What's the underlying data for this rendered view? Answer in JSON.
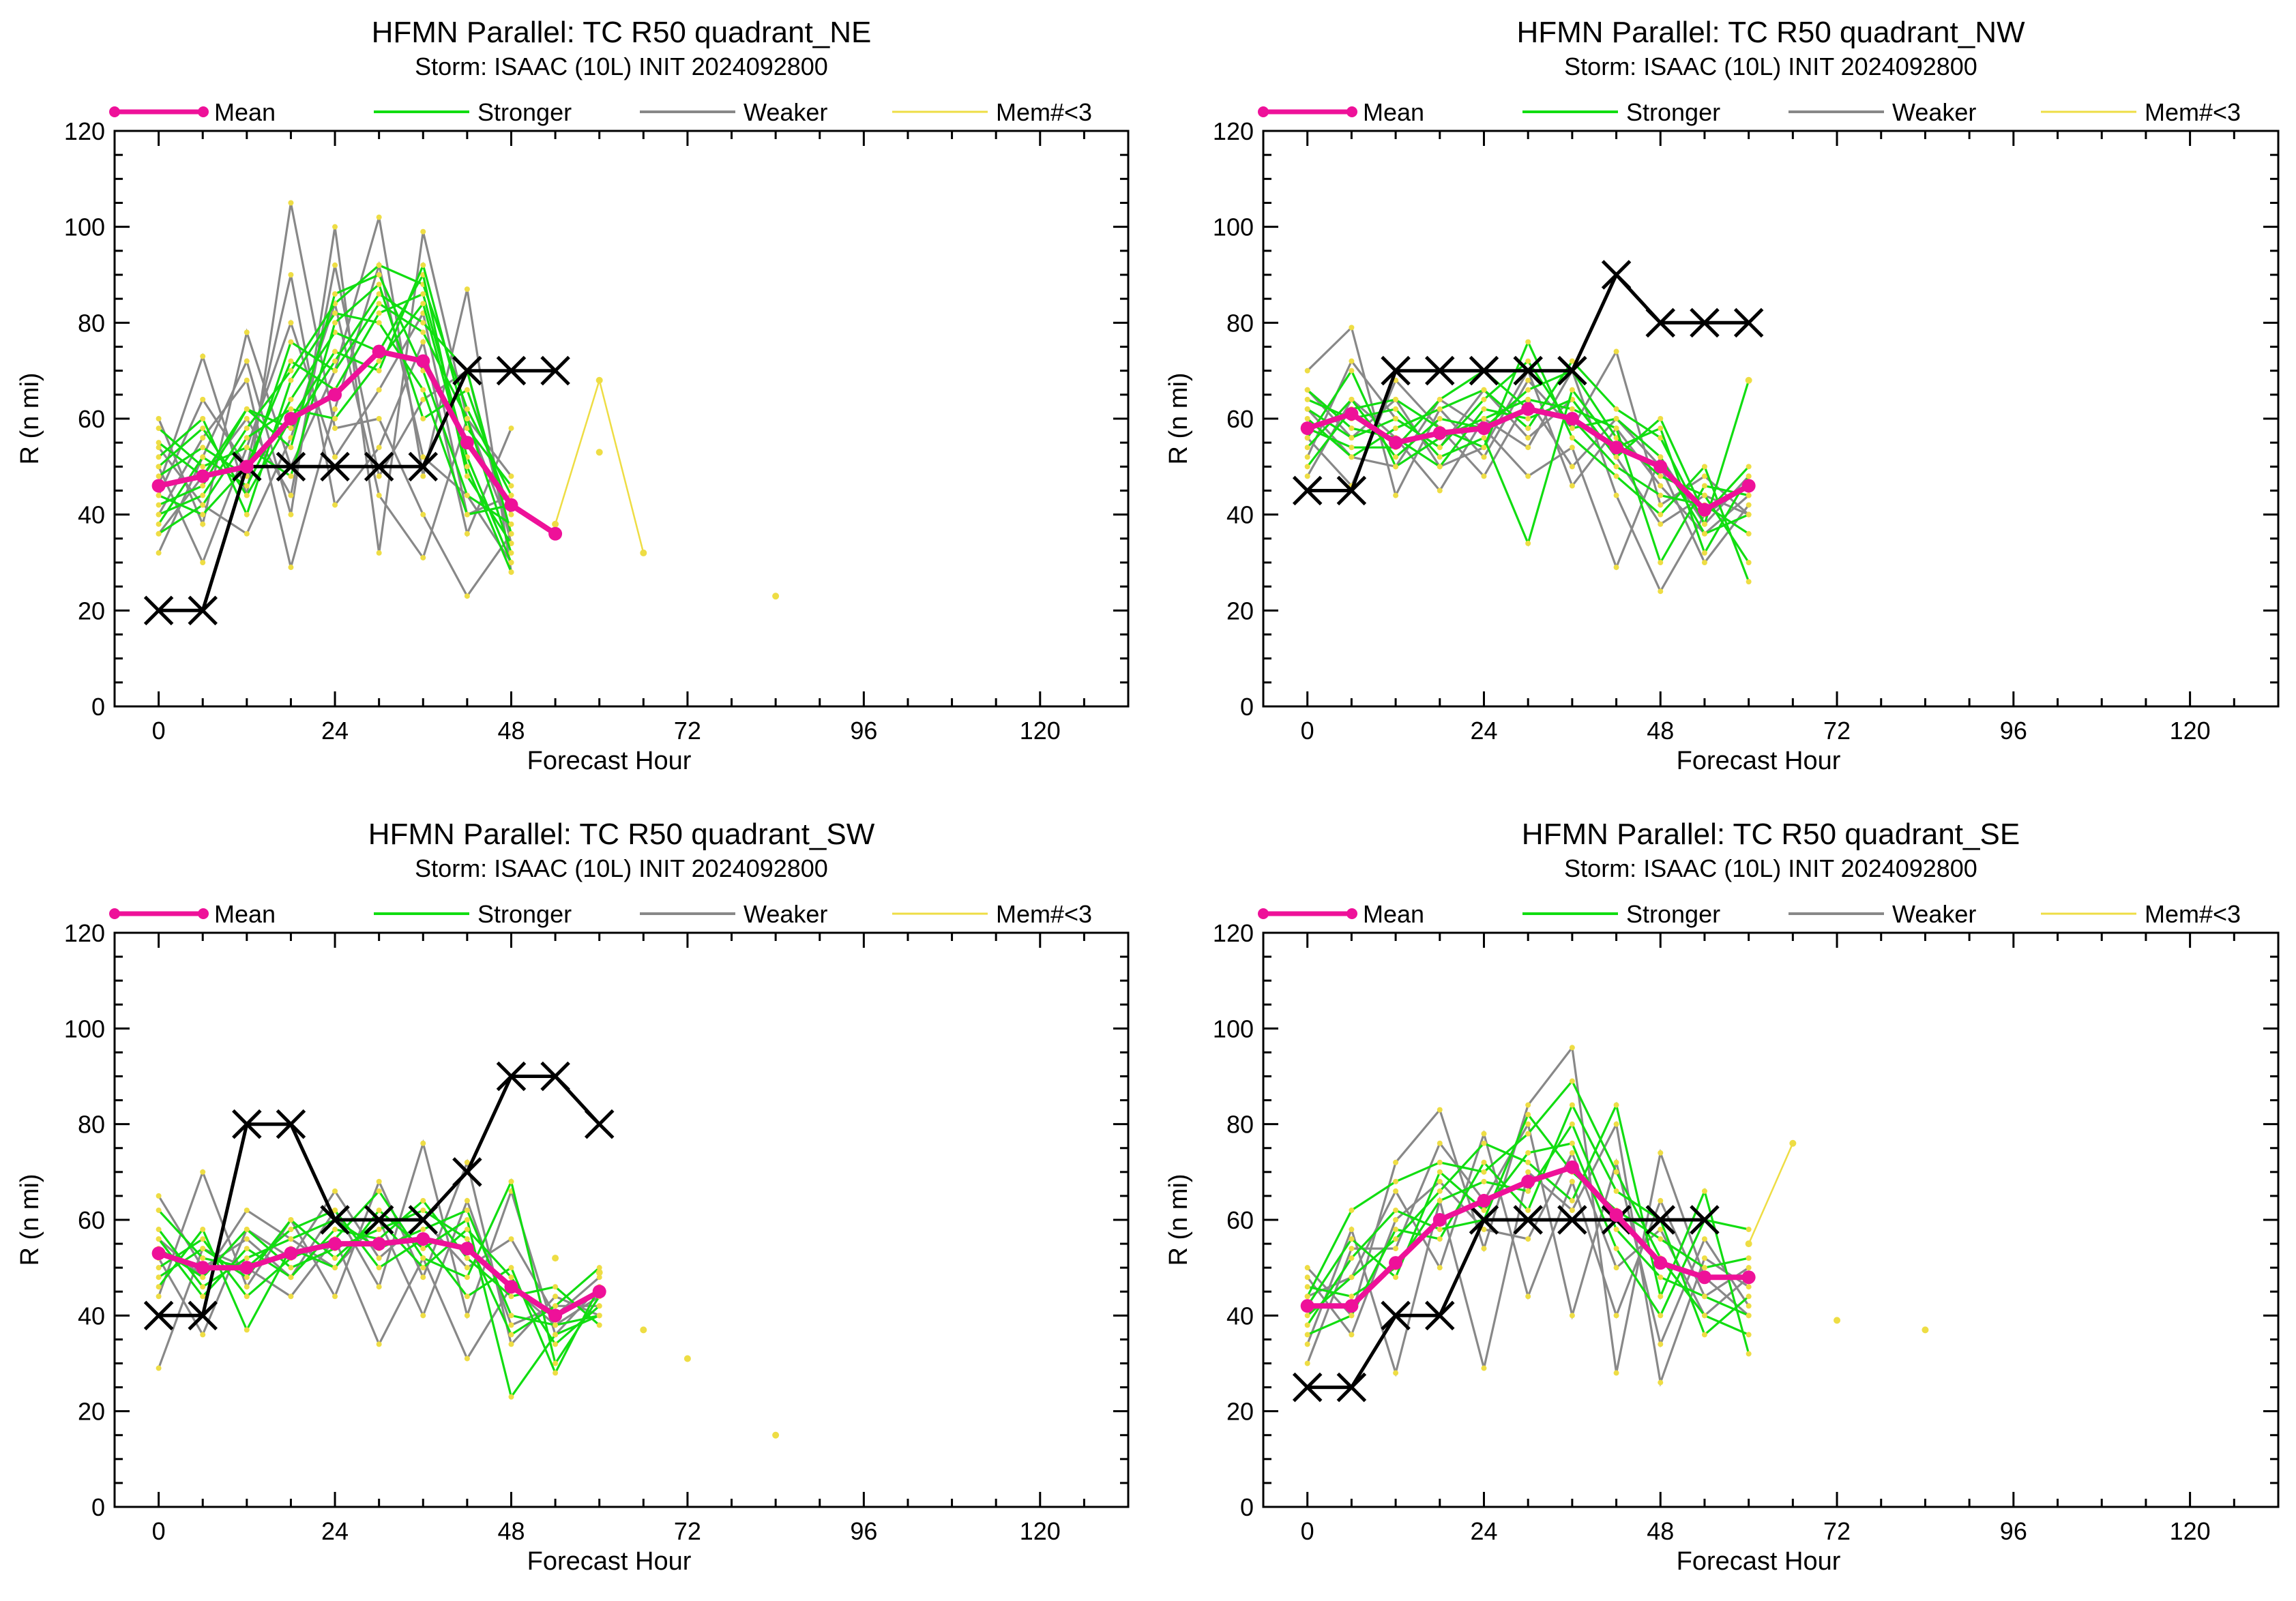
{
  "colors": {
    "mean": "#ee1199",
    "stronger": "#11dd11",
    "weaker": "#888888",
    "mem_lt3": "#eedd44",
    "best_track": "#000000"
  },
  "legend": {
    "mean": "Mean",
    "stronger": "Stronger",
    "weaker": "Weaker",
    "mem_lt3": "Mem#<3"
  },
  "chart_data": [
    {
      "type": "line",
      "title": "HFMN Parallel: TC  R50 quadrant_NE",
      "subtitle": "Storm: ISAAC (10L) INIT 2024092800",
      "xlabel": "Forecast Hour",
      "ylabel": "R (n mi)",
      "xlim": [
        -6,
        132
      ],
      "ylim": [
        0,
        120
      ],
      "xticks": [
        0,
        24,
        48,
        72,
        96,
        120
      ],
      "yticks": [
        0,
        20,
        40,
        60,
        80,
        100,
        120
      ],
      "mean": {
        "x": [
          0,
          6,
          12,
          18,
          24,
          30,
          36,
          42,
          48,
          54
        ],
        "y": [
          46,
          48,
          50,
          60,
          65,
          74,
          72,
          55,
          42,
          36
        ]
      },
      "best_track": {
        "x": [
          0,
          6,
          12,
          18,
          24,
          30,
          36,
          42,
          48,
          54
        ],
        "y": [
          20,
          20,
          50,
          50,
          50,
          50,
          50,
          70,
          70,
          70
        ]
      },
      "mem_lt3": [
        {
          "x": [
            54,
            60,
            66
          ],
          "y": [
            38,
            68,
            32
          ]
        },
        {
          "x": [
            60
          ],
          "y": [
            53
          ]
        },
        {
          "x": [
            84
          ],
          "y": [
            23
          ]
        }
      ],
      "members_x": [
        0,
        6,
        12,
        18,
        24,
        30,
        36,
        42,
        48
      ],
      "stronger": [
        [
          40,
          44,
          58,
          70,
          84,
          92,
          88,
          62,
          44
        ],
        [
          55,
          48,
          62,
          58,
          72,
          86,
          80,
          70,
          36
        ],
        [
          38,
          52,
          46,
          64,
          78,
          74,
          90,
          48,
          34
        ],
        [
          58,
          50,
          54,
          48,
          80,
          88,
          60,
          66,
          40
        ],
        [
          44,
          40,
          50,
          72,
          66,
          82,
          86,
          52,
          30
        ],
        [
          50,
          58,
          44,
          60,
          74,
          70,
          92,
          58,
          46
        ],
        [
          42,
          46,
          62,
          54,
          86,
          90,
          70,
          44,
          38
        ],
        [
          48,
          54,
          48,
          76,
          70,
          84,
          78,
          60,
          32
        ],
        [
          36,
          42,
          56,
          62,
          60,
          72,
          84,
          50,
          28
        ],
        [
          52,
          60,
          40,
          68,
          82,
          80,
          66,
          40,
          42
        ]
      ],
      "weaker": [
        [
          46,
          73,
          44,
          105,
          58,
          60,
          40,
          23,
          36
        ],
        [
          32,
          52,
          72,
          40,
          100,
          32,
          99,
          60,
          48
        ],
        [
          60,
          38,
          78,
          50,
          70,
          102,
          48,
          87,
          28
        ],
        [
          44,
          64,
          50,
          90,
          42,
          54,
          76,
          36,
          58
        ],
        [
          54,
          42,
          36,
          56,
          84,
          44,
          31,
          60,
          36
        ],
        [
          40,
          56,
          68,
          29,
          62,
          92,
          52,
          44,
          30
        ],
        [
          50,
          30,
          54,
          80,
          52,
          66,
          82,
          40,
          44
        ],
        [
          36,
          48,
          60,
          44,
          92,
          48,
          64,
          70,
          34
        ]
      ]
    },
    {
      "type": "line",
      "title": "HFMN Parallel: TC  R50 quadrant_NW",
      "subtitle": "Storm: ISAAC (10L) INIT 2024092800",
      "xlabel": "Forecast Hour",
      "ylabel": "R (n mi)",
      "xlim": [
        -6,
        132
      ],
      "ylim": [
        0,
        120
      ],
      "xticks": [
        0,
        24,
        48,
        72,
        96,
        120
      ],
      "yticks": [
        0,
        20,
        40,
        60,
        80,
        100,
        120
      ],
      "mean": {
        "x": [
          0,
          6,
          12,
          18,
          24,
          30,
          36,
          42,
          48,
          54,
          60
        ],
        "y": [
          58,
          61,
          55,
          57,
          58,
          62,
          60,
          54,
          50,
          41,
          46
        ]
      },
      "best_track": {
        "x": [
          0,
          6,
          12,
          18,
          24,
          30,
          36,
          42,
          48,
          54,
          60
        ],
        "y": [
          45,
          45,
          70,
          70,
          70,
          70,
          70,
          90,
          80,
          80,
          80
        ]
      },
      "mem_lt3": [
        {
          "x": [
            60
          ],
          "y": [
            68
          ]
        }
      ],
      "members_x": [
        0,
        6,
        12,
        18,
        24,
        30,
        36,
        42,
        48,
        54,
        60
      ],
      "stronger": [
        [
          62,
          56,
          60,
          54,
          64,
          72,
          58,
          60,
          52,
          36,
          40
        ],
        [
          54,
          64,
          52,
          60,
          58,
          66,
          70,
          56,
          48,
          44,
          30
        ],
        [
          66,
          58,
          56,
          50,
          62,
          60,
          64,
          52,
          60,
          40,
          50
        ],
        [
          50,
          62,
          64,
          58,
          54,
          76,
          56,
          48,
          40,
          50,
          26
        ],
        [
          60,
          52,
          58,
          62,
          66,
          58,
          72,
          62,
          56,
          38,
          68
        ],
        [
          56,
          70,
          50,
          56,
          60,
          64,
          62,
          58,
          30,
          46,
          44
        ],
        [
          64,
          60,
          62,
          52,
          56,
          34,
          66,
          54,
          58,
          32,
          48
        ],
        [
          58,
          54,
          54,
          64,
          70,
          62,
          60,
          50,
          44,
          42,
          36
        ]
      ],
      "weaker": [
        [
          70,
          79,
          44,
          62,
          52,
          68,
          58,
          74,
          42,
          48,
          40
        ],
        [
          48,
          64,
          56,
          45,
          60,
          54,
          70,
          44,
          24,
          40,
          46
        ],
        [
          56,
          46,
          68,
          58,
          48,
          64,
          50,
          60,
          50,
          30,
          42
        ],
        [
          62,
          52,
          50,
          64,
          58,
          48,
          54,
          29,
          52,
          38,
          48
        ],
        [
          52,
          72,
          60,
          54,
          66,
          56,
          64,
          52,
          38,
          44,
          40
        ],
        [
          66,
          56,
          64,
          50,
          54,
          70,
          46,
          58,
          46,
          36,
          44
        ]
      ]
    },
    {
      "type": "line",
      "title": "HFMN Parallel: TC  R50 quadrant_SW",
      "subtitle": "Storm: ISAAC (10L) INIT 2024092800",
      "xlabel": "Forecast Hour",
      "ylabel": "R (n mi)",
      "xlim": [
        -6,
        132
      ],
      "ylim": [
        0,
        120
      ],
      "xticks": [
        0,
        24,
        48,
        72,
        96,
        120
      ],
      "yticks": [
        0,
        20,
        40,
        60,
        80,
        100,
        120
      ],
      "mean": {
        "x": [
          0,
          6,
          12,
          18,
          24,
          30,
          36,
          42,
          48,
          54,
          60
        ],
        "y": [
          53,
          50,
          50,
          53,
          55,
          55,
          56,
          54,
          46,
          40,
          45
        ]
      },
      "best_track": {
        "x": [
          0,
          6,
          12,
          18,
          24,
          30,
          36,
          42,
          48,
          54,
          60
        ],
        "y": [
          40,
          40,
          80,
          80,
          60,
          60,
          60,
          70,
          90,
          90,
          80
        ]
      },
      "mem_lt3": [
        {
          "x": [
            54
          ],
          "y": [
            52
          ]
        },
        {
          "x": [
            60
          ],
          "y": [
            49
          ]
        },
        {
          "x": [
            66
          ],
          "y": [
            37
          ]
        },
        {
          "x": [
            72
          ],
          "y": [
            31
          ]
        },
        {
          "x": [
            84
          ],
          "y": [
            15
          ]
        }
      ],
      "members_x": [
        0,
        6,
        12,
        18,
        24,
        30,
        36,
        42,
        48,
        54,
        60
      ],
      "stronger": [
        [
          58,
          46,
          52,
          56,
          60,
          54,
          58,
          62,
          40,
          38,
          40
        ],
        [
          50,
          56,
          44,
          52,
          56,
          66,
          52,
          48,
          68,
          30,
          44
        ],
        [
          54,
          48,
          58,
          50,
          54,
          58,
          62,
          56,
          36,
          42,
          50
        ],
        [
          62,
          52,
          50,
          58,
          62,
          50,
          56,
          44,
          50,
          28,
          46
        ],
        [
          46,
          58,
          37,
          54,
          50,
          62,
          54,
          60,
          23,
          36,
          40
        ],
        [
          56,
          44,
          54,
          48,
          58,
          56,
          64,
          52,
          44,
          46,
          38
        ],
        [
          48,
          54,
          48,
          60,
          52,
          60,
          50,
          58,
          48,
          34,
          42
        ]
      ],
      "weaker": [
        [
          65,
          50,
          56,
          48,
          62,
          46,
          76,
          40,
          66,
          36,
          46
        ],
        [
          44,
          70,
          46,
          60,
          44,
          68,
          48,
          72,
          34,
          44,
          40
        ],
        [
          52,
          36,
          58,
          52,
          66,
          52,
          60,
          50,
          56,
          40,
          48
        ],
        [
          29,
          54,
          50,
          44,
          56,
          34,
          52,
          31,
          46,
          38,
          44
        ],
        [
          56,
          48,
          62,
          56,
          50,
          60,
          40,
          64,
          38,
          42,
          42
        ]
      ]
    },
    {
      "type": "line",
      "title": "HFMN Parallel: TC  R50 quadrant_SE",
      "subtitle": "Storm: ISAAC (10L) INIT 2024092800",
      "xlabel": "Forecast Hour",
      "ylabel": "R (n mi)",
      "xlim": [
        -6,
        132
      ],
      "ylim": [
        0,
        120
      ],
      "xticks": [
        0,
        24,
        48,
        72,
        96,
        120
      ],
      "yticks": [
        0,
        20,
        40,
        60,
        80,
        100,
        120
      ],
      "mean": {
        "x": [
          0,
          6,
          12,
          18,
          24,
          30,
          36,
          42,
          48,
          54,
          60
        ],
        "y": [
          42,
          42,
          51,
          60,
          64,
          68,
          71,
          61,
          51,
          48,
          48
        ]
      },
      "best_track": {
        "x": [
          0,
          6,
          12,
          18,
          24,
          30,
          36,
          42,
          48,
          54
        ],
        "y": [
          25,
          25,
          40,
          40,
          60,
          60,
          60,
          60,
          60,
          60
        ]
      },
      "mem_lt3": [
        {
          "x": [
            60,
            66
          ],
          "y": [
            55,
            76
          ]
        },
        {
          "x": [
            72
          ],
          "y": [
            39
          ]
        },
        {
          "x": [
            84
          ],
          "y": [
            37
          ]
        }
      ],
      "members_x": [
        0,
        6,
        12,
        18,
        24,
        30,
        36,
        42,
        48,
        54,
        60
      ],
      "stronger": [
        [
          44,
          62,
          68,
          72,
          70,
          78,
          89,
          70,
          52,
          40,
          36
        ],
        [
          40,
          48,
          56,
          66,
          76,
          72,
          64,
          84,
          44,
          66,
          32
        ],
        [
          38,
          52,
          62,
          58,
          60,
          82,
          70,
          62,
          56,
          50,
          52
        ],
        [
          46,
          44,
          50,
          64,
          68,
          66,
          80,
          58,
          48,
          44,
          40
        ],
        [
          42,
          56,
          48,
          70,
          62,
          74,
          76,
          54,
          40,
          60,
          58
        ],
        [
          36,
          40,
          58,
          56,
          72,
          62,
          84,
          66,
          60,
          36,
          44
        ]
      ],
      "weaker": [
        [
          50,
          40,
          72,
          83,
          54,
          84,
          96,
          28,
          74,
          48,
          40
        ],
        [
          34,
          58,
          28,
          64,
          29,
          70,
          62,
          80,
          26,
          52,
          46
        ],
        [
          44,
          48,
          66,
          50,
          78,
          44,
          68,
          40,
          64,
          44,
          50
        ],
        [
          30,
          54,
          54,
          76,
          64,
          80,
          40,
          72,
          34,
          56,
          42
        ],
        [
          48,
          36,
          60,
          68,
          58,
          56,
          74,
          50,
          58,
          40,
          48
        ]
      ]
    }
  ]
}
